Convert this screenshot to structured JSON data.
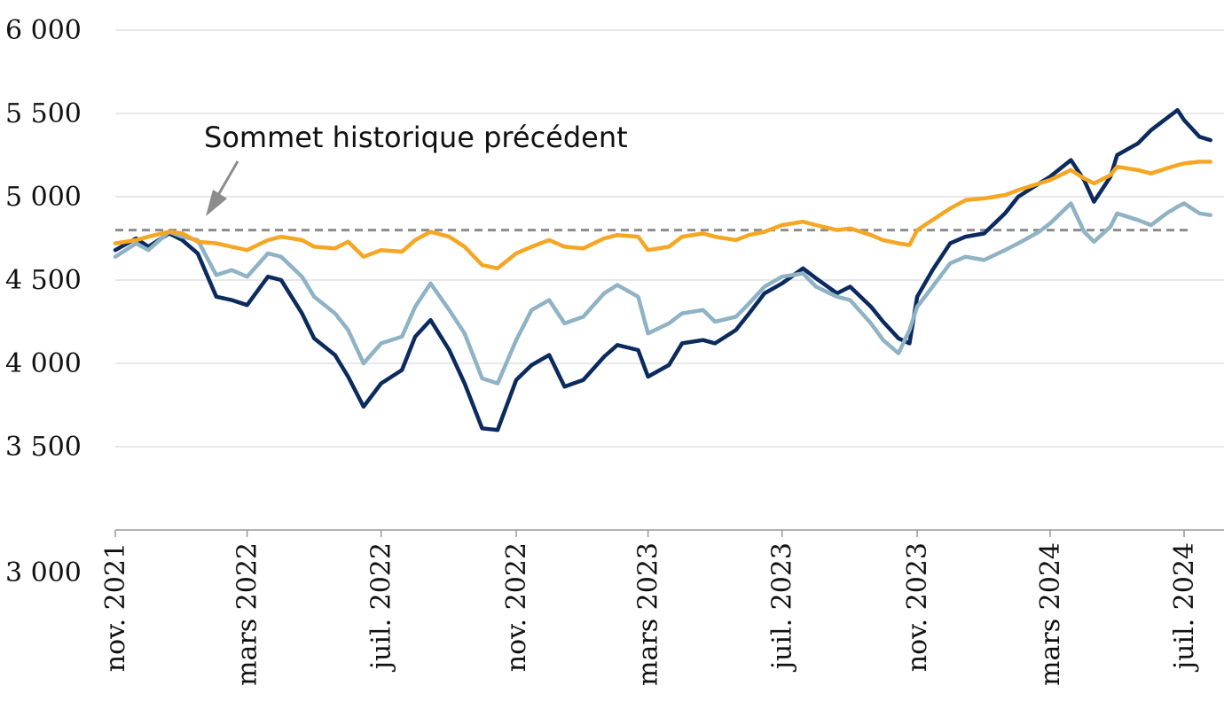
{
  "chart_data": {
    "type": "line",
    "title": "",
    "xlabel": "",
    "ylabel": "",
    "ylim": [
      3000,
      6000
    ],
    "y_ticks": [
      {
        "value": 3000,
        "label": "3 000"
      },
      {
        "value": 3500,
        "label": "3 500"
      },
      {
        "value": 4000,
        "label": "4 000"
      },
      {
        "value": 4500,
        "label": "4 500"
      },
      {
        "value": 5000,
        "label": "5 000"
      },
      {
        "value": 5500,
        "label": "5 500"
      },
      {
        "value": 6000,
        "label": "6 000"
      }
    ],
    "x_range": [
      "2021-11",
      "2024-07"
    ],
    "x_ticks": [
      {
        "date": "2021-11",
        "label": "nov. 2021"
      },
      {
        "date": "2022-03",
        "label": "mars 2022"
      },
      {
        "date": "2022-07",
        "label": "juil. 2022"
      },
      {
        "date": "2022-11",
        "label": "nov. 2022"
      },
      {
        "date": "2023-03",
        "label": "mars 2023"
      },
      {
        "date": "2023-07",
        "label": "juil. 2023"
      },
      {
        "date": "2023-11",
        "label": "nov. 2023"
      },
      {
        "date": "2024-03",
        "label": "mars 2024"
      },
      {
        "date": "2024-07",
        "label": "juil. 2024"
      }
    ],
    "grid": true,
    "reference_line": {
      "value": 4800
    },
    "annotation": {
      "text": "Sommet historique précédent"
    },
    "series": [
      {
        "color": "#0b2a5e",
        "points": [
          [
            "2021-11",
            4680
          ],
          [
            "2021-11-20",
            4750
          ],
          [
            "2021-12",
            4700
          ],
          [
            "2021-12-20",
            4780
          ],
          [
            "2022-01",
            4740
          ],
          [
            "2022-01-15",
            4660
          ],
          [
            "2022-02",
            4400
          ],
          [
            "2022-02-15",
            4380
          ],
          [
            "2022-03",
            4350
          ],
          [
            "2022-03-20",
            4520
          ],
          [
            "2022-04",
            4500
          ],
          [
            "2022-04-20",
            4300
          ],
          [
            "2022-05",
            4150
          ],
          [
            "2022-05-20",
            4050
          ],
          [
            "2022-06",
            3920
          ],
          [
            "2022-06-15",
            3740
          ],
          [
            "2022-07",
            3880
          ],
          [
            "2022-07-20",
            3960
          ],
          [
            "2022-08",
            4160
          ],
          [
            "2022-08-15",
            4260
          ],
          [
            "2022-09",
            4080
          ],
          [
            "2022-09-15",
            3880
          ],
          [
            "2022-10",
            3610
          ],
          [
            "2022-10-15",
            3600
          ],
          [
            "2022-11",
            3900
          ],
          [
            "2022-11-15",
            3990
          ],
          [
            "2022-12",
            4050
          ],
          [
            "2022-12-15",
            3860
          ],
          [
            "2023-01",
            3900
          ],
          [
            "2023-01-20",
            4040
          ],
          [
            "2023-02",
            4110
          ],
          [
            "2023-02-20",
            4080
          ],
          [
            "2023-03",
            3920
          ],
          [
            "2023-03-20",
            3990
          ],
          [
            "2023-04",
            4120
          ],
          [
            "2023-04-20",
            4140
          ],
          [
            "2023-05",
            4120
          ],
          [
            "2023-05-20",
            4200
          ],
          [
            "2023-06",
            4300
          ],
          [
            "2023-06-15",
            4420
          ],
          [
            "2023-07",
            4480
          ],
          [
            "2023-07-20",
            4570
          ],
          [
            "2023-08",
            4510
          ],
          [
            "2023-08-20",
            4420
          ],
          [
            "2023-09",
            4460
          ],
          [
            "2023-09-20",
            4340
          ],
          [
            "2023-10",
            4250
          ],
          [
            "2023-10-15",
            4150
          ],
          [
            "2023-10-25",
            4120
          ],
          [
            "2023-11",
            4400
          ],
          [
            "2023-11-15",
            4560
          ],
          [
            "2023-12",
            4720
          ],
          [
            "2023-12-15",
            4760
          ],
          [
            "2024-01",
            4780
          ],
          [
            "2024-01-20",
            4900
          ],
          [
            "2024-02",
            5000
          ],
          [
            "2024-02-20",
            5080
          ],
          [
            "2024-03",
            5120
          ],
          [
            "2024-03-20",
            5220
          ],
          [
            "2024-04",
            5100
          ],
          [
            "2024-04-10",
            4970
          ],
          [
            "2024-04-25",
            5120
          ],
          [
            "2024-05",
            5250
          ],
          [
            "2024-05-20",
            5320
          ],
          [
            "2024-06",
            5400
          ],
          [
            "2024-06-15",
            5470
          ],
          [
            "2024-06-25",
            5520
          ],
          [
            "2024-07",
            5460
          ],
          [
            "2024-07-15",
            5360
          ],
          [
            "2024-07-25",
            5340
          ]
        ]
      },
      {
        "color": "#8fb3c4",
        "points": [
          [
            "2021-11",
            4640
          ],
          [
            "2021-11-20",
            4720
          ],
          [
            "2021-12",
            4680
          ],
          [
            "2021-12-20",
            4790
          ],
          [
            "2022-01",
            4760
          ],
          [
            "2022-01-15",
            4740
          ],
          [
            "2022-02",
            4530
          ],
          [
            "2022-02-15",
            4560
          ],
          [
            "2022-03",
            4520
          ],
          [
            "2022-03-20",
            4660
          ],
          [
            "2022-04",
            4640
          ],
          [
            "2022-04-20",
            4520
          ],
          [
            "2022-05",
            4400
          ],
          [
            "2022-05-20",
            4300
          ],
          [
            "2022-06",
            4200
          ],
          [
            "2022-06-15",
            4000
          ],
          [
            "2022-07",
            4120
          ],
          [
            "2022-07-20",
            4160
          ],
          [
            "2022-08",
            4340
          ],
          [
            "2022-08-15",
            4480
          ],
          [
            "2022-09",
            4320
          ],
          [
            "2022-09-15",
            4180
          ],
          [
            "2022-10",
            3910
          ],
          [
            "2022-10-15",
            3880
          ],
          [
            "2022-11",
            4140
          ],
          [
            "2022-11-15",
            4320
          ],
          [
            "2022-12",
            4380
          ],
          [
            "2022-12-15",
            4240
          ],
          [
            "2023-01",
            4280
          ],
          [
            "2023-01-20",
            4420
          ],
          [
            "2023-02",
            4470
          ],
          [
            "2023-02-20",
            4400
          ],
          [
            "2023-03",
            4180
          ],
          [
            "2023-03-20",
            4240
          ],
          [
            "2023-04",
            4300
          ],
          [
            "2023-04-20",
            4320
          ],
          [
            "2023-05",
            4250
          ],
          [
            "2023-05-20",
            4280
          ],
          [
            "2023-06",
            4360
          ],
          [
            "2023-06-15",
            4460
          ],
          [
            "2023-07",
            4520
          ],
          [
            "2023-07-20",
            4540
          ],
          [
            "2023-08",
            4460
          ],
          [
            "2023-08-20",
            4400
          ],
          [
            "2023-09",
            4380
          ],
          [
            "2023-09-20",
            4240
          ],
          [
            "2023-10",
            4140
          ],
          [
            "2023-10-15",
            4060
          ],
          [
            "2023-10-25",
            4200
          ],
          [
            "2023-11",
            4340
          ],
          [
            "2023-11-15",
            4460
          ],
          [
            "2023-12",
            4600
          ],
          [
            "2023-12-15",
            4640
          ],
          [
            "2024-01",
            4620
          ],
          [
            "2024-01-20",
            4680
          ],
          [
            "2024-02",
            4720
          ],
          [
            "2024-02-20",
            4790
          ],
          [
            "2024-03",
            4840
          ],
          [
            "2024-03-20",
            4960
          ],
          [
            "2024-04",
            4790
          ],
          [
            "2024-04-10",
            4730
          ],
          [
            "2024-04-25",
            4820
          ],
          [
            "2024-05",
            4900
          ],
          [
            "2024-05-20",
            4860
          ],
          [
            "2024-06",
            4830
          ],
          [
            "2024-06-15",
            4900
          ],
          [
            "2024-06-25",
            4940
          ],
          [
            "2024-07",
            4960
          ],
          [
            "2024-07-15",
            4900
          ],
          [
            "2024-07-25",
            4890
          ]
        ]
      },
      {
        "color": "#f5a623",
        "points": [
          [
            "2021-11",
            4720
          ],
          [
            "2021-11-20",
            4740
          ],
          [
            "2021-12",
            4760
          ],
          [
            "2021-12-20",
            4790
          ],
          [
            "2022-01",
            4780
          ],
          [
            "2022-01-15",
            4730
          ],
          [
            "2022-02",
            4720
          ],
          [
            "2022-02-15",
            4700
          ],
          [
            "2022-03",
            4680
          ],
          [
            "2022-03-20",
            4740
          ],
          [
            "2022-04",
            4760
          ],
          [
            "2022-04-20",
            4740
          ],
          [
            "2022-05",
            4700
          ],
          [
            "2022-05-20",
            4690
          ],
          [
            "2022-06",
            4730
          ],
          [
            "2022-06-15",
            4640
          ],
          [
            "2022-07",
            4680
          ],
          [
            "2022-07-20",
            4670
          ],
          [
            "2022-08",
            4740
          ],
          [
            "2022-08-15",
            4790
          ],
          [
            "2022-09",
            4760
          ],
          [
            "2022-09-15",
            4700
          ],
          [
            "2022-10",
            4590
          ],
          [
            "2022-10-15",
            4570
          ],
          [
            "2022-11",
            4660
          ],
          [
            "2022-11-15",
            4700
          ],
          [
            "2022-12",
            4740
          ],
          [
            "2022-12-15",
            4700
          ],
          [
            "2023-01",
            4690
          ],
          [
            "2023-01-20",
            4750
          ],
          [
            "2023-02",
            4770
          ],
          [
            "2023-02-20",
            4760
          ],
          [
            "2023-03",
            4680
          ],
          [
            "2023-03-20",
            4700
          ],
          [
            "2023-04",
            4760
          ],
          [
            "2023-04-20",
            4780
          ],
          [
            "2023-05",
            4760
          ],
          [
            "2023-05-20",
            4740
          ],
          [
            "2023-06",
            4770
          ],
          [
            "2023-06-15",
            4790
          ],
          [
            "2023-07",
            4830
          ],
          [
            "2023-07-20",
            4850
          ],
          [
            "2023-08",
            4830
          ],
          [
            "2023-08-20",
            4800
          ],
          [
            "2023-09",
            4810
          ],
          [
            "2023-09-20",
            4770
          ],
          [
            "2023-10",
            4740
          ],
          [
            "2023-10-15",
            4720
          ],
          [
            "2023-10-25",
            4710
          ],
          [
            "2023-11",
            4800
          ],
          [
            "2023-11-15",
            4860
          ],
          [
            "2023-12",
            4930
          ],
          [
            "2023-12-15",
            4980
          ],
          [
            "2024-01",
            4990
          ],
          [
            "2024-01-20",
            5010
          ],
          [
            "2024-02",
            5040
          ],
          [
            "2024-02-20",
            5080
          ],
          [
            "2024-03",
            5100
          ],
          [
            "2024-03-20",
            5160
          ],
          [
            "2024-04",
            5110
          ],
          [
            "2024-04-10",
            5080
          ],
          [
            "2024-04-25",
            5130
          ],
          [
            "2024-05",
            5180
          ],
          [
            "2024-05-20",
            5160
          ],
          [
            "2024-06",
            5140
          ],
          [
            "2024-06-15",
            5170
          ],
          [
            "2024-06-25",
            5190
          ],
          [
            "2024-07",
            5200
          ],
          [
            "2024-07-15",
            5210
          ],
          [
            "2024-07-25",
            5210
          ]
        ]
      }
    ]
  }
}
